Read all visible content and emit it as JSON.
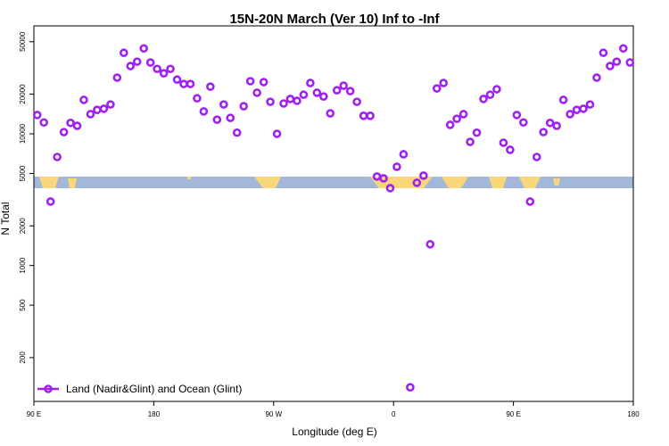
{
  "chart_data": {
    "type": "scatter",
    "title": "15N-20N March (Ver 10)   Inf to -Inf",
    "x_label": "Longitude (deg E)",
    "y_label": "N Total",
    "log_y": true,
    "legend_position": "lower left",
    "xlim": [
      90,
      540
    ],
    "xticks": [
      {
        "value": 90,
        "label": "90 E"
      },
      {
        "value": 180,
        "label": "180"
      },
      {
        "value": 270,
        "label": "90 W"
      },
      {
        "value": 360,
        "label": "0"
      },
      {
        "value": 450,
        "label": "90 E"
      },
      {
        "value": 540,
        "label": "180"
      }
    ],
    "ylim": [
      93,
      66000
    ],
    "yticks": [
      200,
      500,
      1000,
      2000,
      5000,
      10000,
      20000,
      50000
    ],
    "series": [
      {
        "name": "Land (Nadir&Glint) and Ocean (Glint)",
        "color": "#a020f0",
        "x": [
          92.5,
          97.5,
          102.5,
          107.5,
          112.5,
          117.5,
          122.5,
          127.5,
          132.5,
          137.5,
          142.5,
          147.5,
          152.5,
          157.5,
          162.5,
          167.5,
          172.5,
          177.5,
          182.5,
          187.5,
          192.5,
          197.5,
          202.5,
          207.5,
          212.5,
          217.5,
          222.5,
          227.5,
          232.5,
          237.5,
          242.5,
          247.5,
          252.5,
          257.5,
          262.5,
          267.5,
          272.5,
          277.5,
          282.5,
          287.5,
          292.5,
          297.5,
          302.5,
          307.5,
          312.5,
          317.5,
          322.5,
          327.5,
          332.5,
          337.5,
          342.5,
          347.5,
          352.5,
          357.5,
          362.5,
          367.5,
          372.5,
          377.5,
          382.5,
          387.5,
          392.5,
          397.5,
          402.5,
          407.5,
          412.5,
          417.5,
          422.5,
          427.5,
          432.5,
          437.5,
          442.5,
          447.5,
          452.5,
          457.5,
          462.5,
          467.5,
          472.5,
          477.5,
          482.5,
          487.5,
          492.5,
          497.5,
          502.5,
          507.5,
          512.5,
          517.5,
          522.5,
          527.5,
          532.5,
          537.5
        ],
        "values": [
          13900,
          12200,
          3060,
          6670,
          10300,
          12100,
          11500,
          18100,
          14100,
          15200,
          15500,
          16700,
          26700,
          41200,
          32700,
          35300,
          44500,
          34800,
          31100,
          28800,
          31100,
          25800,
          23900,
          23900,
          18600,
          14800,
          22800,
          12800,
          16700,
          13200,
          10200,
          16200,
          25100,
          20500,
          24700,
          17500,
          10000,
          17000,
          18400,
          17800,
          19800,
          24300,
          20500,
          19200,
          14300,
          21400,
          23200,
          21100,
          17500,
          13700,
          13700,
          4740,
          4590,
          3870,
          5620,
          6990,
          119,
          4250,
          4810,
          1450,
          22100,
          24300,
          11700,
          13000,
          14100,
          8690,
          10200,
          18400,
          19800,
          21800,
          8560,
          7560,
          13900,
          12200,
          3060,
          6670,
          10300,
          12100,
          11500,
          18100,
          14100,
          15200,
          15500,
          16700,
          26700,
          41200,
          32700,
          35300,
          44500,
          34800
        ]
      }
    ]
  }
}
